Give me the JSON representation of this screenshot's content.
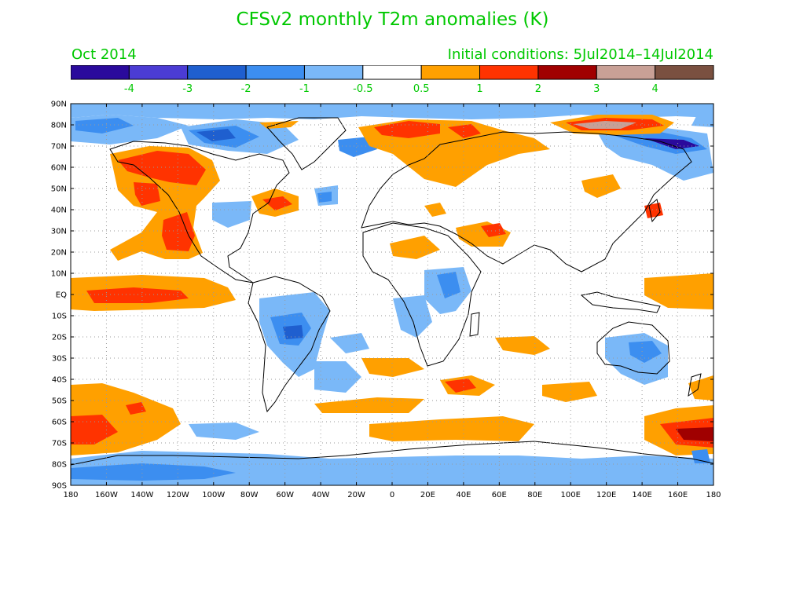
{
  "title": "CFSv2 monthly T2m anomalies (K)",
  "valid_month": "Oct 2014",
  "initial_conditions": "Initial conditions: 5Jul2014–14Jul2014",
  "colorbar": {
    "colors": [
      "#2a0a9c",
      "#4b3cd4",
      "#1f5fcf",
      "#3c8ef0",
      "#7ab8f8",
      "#ffffff",
      "#ffa000",
      "#ff3300",
      "#a00000",
      "#c8a096",
      "#7a5040"
    ],
    "labels": [
      "-4",
      "-3",
      "-2",
      "-1",
      "-0.5",
      "0.5",
      "1",
      "2",
      "3",
      "4"
    ]
  },
  "map": {
    "lat_ticks": [
      "90N",
      "80N",
      "70N",
      "60N",
      "50N",
      "40N",
      "30N",
      "20N",
      "10N",
      "EQ",
      "10S",
      "20S",
      "30S",
      "40S",
      "50S",
      "60S",
      "70S",
      "80S",
      "90S"
    ],
    "lon_ticks": [
      "180",
      "160W",
      "140W",
      "120W",
      "100W",
      "80W",
      "60W",
      "40W",
      "20W",
      "0",
      "20E",
      "40E",
      "60E",
      "80E",
      "100E",
      "120E",
      "140E",
      "160E",
      "180"
    ]
  }
}
